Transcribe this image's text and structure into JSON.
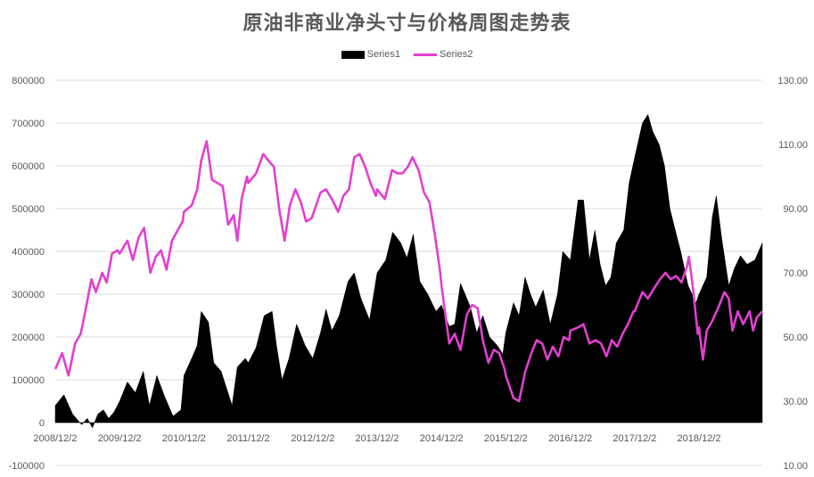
{
  "chart_data": {
    "type": "area+line",
    "title": "原油非商业净头寸与价格周图走势表",
    "legend": {
      "placement": "top-center"
    },
    "grid": true,
    "x_ticks": [
      "2008/12/2",
      "2009/12/2",
      "2010/12/2",
      "2011/12/2",
      "2012/12/2",
      "2013/12/2",
      "2014/12/2",
      "2015/12/2",
      "2016/12/2",
      "2017/12/2",
      "2018/12/2"
    ],
    "x_range": [
      "2008/12/2",
      "2019/11/26"
    ],
    "y_left": {
      "ylim": [
        -100000,
        800000
      ],
      "ticks": [
        "-100000",
        "0",
        "100000",
        "200000",
        "300000",
        "400000",
        "500000",
        "600000",
        "700000",
        "800000"
      ]
    },
    "y_right": {
      "ylim": [
        10,
        130
      ],
      "ticks": [
        "10.00",
        "30.00",
        "50.00",
        "70.00",
        "90.00",
        "110.00",
        "130.00"
      ]
    },
    "series": [
      {
        "name": "Series1",
        "type": "area",
        "axis": "left",
        "color": "#000000",
        "points": [
          [
            "2008/12/2",
            40000
          ],
          [
            "2009/1/20",
            65000
          ],
          [
            "2009/3/10",
            20000
          ],
          [
            "2009/5/1",
            -5000
          ],
          [
            "2009/6/1",
            10000
          ],
          [
            "2009/7/1",
            -12000
          ],
          [
            "2009/8/1",
            20000
          ],
          [
            "2009/9/1",
            30000
          ],
          [
            "2009/10/1",
            10000
          ],
          [
            "2009/11/1",
            25000
          ],
          [
            "2009/12/2",
            50000
          ],
          [
            "2010/1/15",
            95000
          ],
          [
            "2010/3/1",
            70000
          ],
          [
            "2010/4/15",
            120000
          ],
          [
            "2010/5/20",
            40000
          ],
          [
            "2010/7/1",
            110000
          ],
          [
            "2010/8/15",
            60000
          ],
          [
            "2010/10/1",
            15000
          ],
          [
            "2010/11/15",
            30000
          ],
          [
            "2010/12/2",
            110000
          ],
          [
            "2011/1/15",
            150000
          ],
          [
            "2011/2/15",
            180000
          ],
          [
            "2011/3/10",
            260000
          ],
          [
            "2011/4/20",
            235000
          ],
          [
            "2011/5/20",
            140000
          ],
          [
            "2011/7/1",
            120000
          ],
          [
            "2011/9/1",
            40000
          ],
          [
            "2011/10/1",
            130000
          ],
          [
            "2011/11/15",
            150000
          ],
          [
            "2011/12/2",
            140000
          ],
          [
            "2012/1/15",
            175000
          ],
          [
            "2012/3/1",
            250000
          ],
          [
            "2012/4/15",
            260000
          ],
          [
            "2012/5/10",
            180000
          ],
          [
            "2012/6/10",
            100000
          ],
          [
            "2012/7/20",
            150000
          ],
          [
            "2012/9/1",
            230000
          ],
          [
            "2012/10/20",
            180000
          ],
          [
            "2012/12/2",
            150000
          ],
          [
            "2013/1/15",
            210000
          ],
          [
            "2013/2/15",
            265000
          ],
          [
            "2013/3/20",
            215000
          ],
          [
            "2013/5/1",
            250000
          ],
          [
            "2013/6/20",
            330000
          ],
          [
            "2013/7/25",
            350000
          ],
          [
            "2013/9/1",
            290000
          ],
          [
            "2013/10/20",
            240000
          ],
          [
            "2013/12/2",
            350000
          ],
          [
            "2014/1/20",
            380000
          ],
          [
            "2014/2/28",
            445000
          ],
          [
            "2014/4/15",
            420000
          ],
          [
            "2014/5/20",
            385000
          ],
          [
            "2014/6/25",
            440000
          ],
          [
            "2014/8/1",
            330000
          ],
          [
            "2014/9/15",
            300000
          ],
          [
            "2014/11/1",
            260000
          ],
          [
            "2014/12/2",
            275000
          ],
          [
            "2015/1/15",
            225000
          ],
          [
            "2015/2/15",
            230000
          ],
          [
            "2015/3/20",
            325000
          ],
          [
            "2015/4/15",
            300000
          ],
          [
            "2015/5/15",
            270000
          ],
          [
            "2015/6/20",
            210000
          ],
          [
            "2015/7/25",
            250000
          ],
          [
            "2015/9/1",
            200000
          ],
          [
            "2015/10/15",
            180000
          ],
          [
            "2015/11/15",
            160000
          ],
          [
            "2015/12/2",
            210000
          ],
          [
            "2016/1/15",
            280000
          ],
          [
            "2016/2/15",
            250000
          ],
          [
            "2016/3/20",
            340000
          ],
          [
            "2016/4/20",
            300000
          ],
          [
            "2016/5/20",
            270000
          ],
          [
            "2016/7/1",
            310000
          ],
          [
            "2016/8/10",
            230000
          ],
          [
            "2016/9/20",
            300000
          ],
          [
            "2016/10/20",
            400000
          ],
          [
            "2016/12/2",
            380000
          ],
          [
            "2017/1/15",
            520000
          ],
          [
            "2017/2/15",
            520000
          ],
          [
            "2017/3/20",
            380000
          ],
          [
            "2017/4/20",
            450000
          ],
          [
            "2017/5/20",
            370000
          ],
          [
            "2017/6/20",
            320000
          ],
          [
            "2017/7/20",
            340000
          ],
          [
            "2017/8/20",
            420000
          ],
          [
            "2017/10/1",
            450000
          ],
          [
            "2017/11/1",
            560000
          ],
          [
            "2017/12/2",
            620000
          ],
          [
            "2018/1/15",
            700000
          ],
          [
            "2018/2/15",
            720000
          ],
          [
            "2018/3/15",
            680000
          ],
          [
            "2018/4/20",
            650000
          ],
          [
            "2018/5/20",
            600000
          ],
          [
            "2018/6/20",
            500000
          ],
          [
            "2018/7/20",
            450000
          ],
          [
            "2018/8/20",
            400000
          ],
          [
            "2018/10/1",
            320000
          ],
          [
            "2018/11/15",
            280000
          ],
          [
            "2018/12/2",
            300000
          ],
          [
            "2019/1/15",
            340000
          ],
          [
            "2019/2/15",
            480000
          ],
          [
            "2019/3/10",
            530000
          ],
          [
            "2019/4/10",
            430000
          ],
          [
            "2019/5/20",
            320000
          ],
          [
            "2019/6/20",
            360000
          ],
          [
            "2019/7/25",
            390000
          ],
          [
            "2019/9/1",
            370000
          ],
          [
            "2019/10/15",
            380000
          ],
          [
            "2019/11/26",
            420000
          ]
        ]
      },
      {
        "name": "Series2",
        "type": "line",
        "axis": "right",
        "color": "#e23fd1",
        "points": [
          [
            "2008/12/2",
            40
          ],
          [
            "2009/1/10",
            45
          ],
          [
            "2009/2/15",
            38
          ],
          [
            "2009/3/25",
            48
          ],
          [
            "2009/4/25",
            51
          ],
          [
            "2009/5/25",
            59
          ],
          [
            "2009/6/25",
            68
          ],
          [
            "2009/7/20",
            64
          ],
          [
            "2009/8/25",
            70
          ],
          [
            "2009/9/20",
            67
          ],
          [
            "2009/10/20",
            76
          ],
          [
            "2009/11/20",
            77
          ],
          [
            "2009/12/2",
            76
          ],
          [
            "2010/1/15",
            80
          ],
          [
            "2010/2/15",
            74
          ],
          [
            "2010/3/20",
            81
          ],
          [
            "2010/4/20",
            84
          ],
          [
            "2010/5/25",
            70
          ],
          [
            "2010/6/25",
            75
          ],
          [
            "2010/7/25",
            77
          ],
          [
            "2010/8/25",
            71
          ],
          [
            "2010/9/25",
            80
          ],
          [
            "2010/10/25",
            83
          ],
          [
            "2010/11/25",
            86
          ],
          [
            "2010/12/2",
            89
          ],
          [
            "2011/1/15",
            91
          ],
          [
            "2011/2/15",
            96
          ],
          [
            "2011/3/10",
            105
          ],
          [
            "2011/4/10",
            111
          ],
          [
            "2011/5/10",
            99
          ],
          [
            "2011/6/10",
            98
          ],
          [
            "2011/7/10",
            97
          ],
          [
            "2011/8/10",
            85
          ],
          [
            "2011/9/10",
            88
          ],
          [
            "2011/10/1",
            80
          ],
          [
            "2011/10/25",
            93
          ],
          [
            "2011/11/25",
            100
          ],
          [
            "2011/12/2",
            98
          ],
          [
            "2012/1/15",
            101
          ],
          [
            "2012/2/25",
            107
          ],
          [
            "2012/3/25",
            105
          ],
          [
            "2012/4/25",
            103
          ],
          [
            "2012/5/25",
            90
          ],
          [
            "2012/6/25",
            80
          ],
          [
            "2012/7/25",
            91
          ],
          [
            "2012/8/25",
            96
          ],
          [
            "2012/9/25",
            92
          ],
          [
            "2012/10/25",
            86
          ],
          [
            "2012/11/25",
            87
          ],
          [
            "2012/12/2",
            88
          ],
          [
            "2013/1/15",
            95
          ],
          [
            "2013/2/15",
            96
          ],
          [
            "2013/3/20",
            93
          ],
          [
            "2013/4/25",
            89
          ],
          [
            "2013/5/25",
            94
          ],
          [
            "2013/6/25",
            96
          ],
          [
            "2013/7/25",
            106
          ],
          [
            "2013/8/25",
            107
          ],
          [
            "2013/9/25",
            103
          ],
          [
            "2013/10/25",
            98
          ],
          [
            "2013/11/25",
            94
          ],
          [
            "2013/12/2",
            96
          ],
          [
            "2014/1/15",
            93
          ],
          [
            "2014/2/25",
            102
          ],
          [
            "2014/3/25",
            101
          ],
          [
            "2014/4/25",
            101
          ],
          [
            "2014/5/25",
            103
          ],
          [
            "2014/6/20",
            106
          ],
          [
            "2014/7/25",
            102
          ],
          [
            "2014/8/25",
            95
          ],
          [
            "2014/9/25",
            92
          ],
          [
            "2014/10/25",
            82
          ],
          [
            "2014/11/25",
            70
          ],
          [
            "2014/12/2",
            66
          ],
          [
            "2015/1/15",
            48
          ],
          [
            "2015/2/15",
            51
          ],
          [
            "2015/3/20",
            46
          ],
          [
            "2015/4/25",
            57
          ],
          [
            "2015/5/25",
            60
          ],
          [
            "2015/6/25",
            59
          ],
          [
            "2015/7/25",
            49
          ],
          [
            "2015/8/25",
            42
          ],
          [
            "2015/9/25",
            46
          ],
          [
            "2015/10/25",
            45
          ],
          [
            "2015/11/25",
            40
          ],
          [
            "2015/12/2",
            38
          ],
          [
            "2016/1/15",
            31
          ],
          [
            "2016/2/15",
            30
          ],
          [
            "2016/3/20",
            39
          ],
          [
            "2016/4/25",
            45
          ],
          [
            "2016/5/25",
            49
          ],
          [
            "2016/6/25",
            48
          ],
          [
            "2016/7/25",
            43
          ],
          [
            "2016/8/25",
            47
          ],
          [
            "2016/9/25",
            44
          ],
          [
            "2016/10/25",
            50
          ],
          [
            "2016/11/25",
            49
          ],
          [
            "2016/12/2",
            52
          ],
          [
            "2017/1/15",
            53
          ],
          [
            "2017/2/15",
            54
          ],
          [
            "2017/3/20",
            48
          ],
          [
            "2017/4/25",
            49
          ],
          [
            "2017/5/25",
            48
          ],
          [
            "2017/6/25",
            44
          ],
          [
            "2017/7/25",
            49
          ],
          [
            "2017/8/25",
            47
          ],
          [
            "2017/9/25",
            51
          ],
          [
            "2017/10/25",
            54
          ],
          [
            "2017/11/25",
            58
          ],
          [
            "2017/12/2",
            58
          ],
          [
            "2018/1/15",
            64
          ],
          [
            "2018/2/15",
            62
          ],
          [
            "2018/3/20",
            65
          ],
          [
            "2018/4/25",
            68
          ],
          [
            "2018/5/25",
            70
          ],
          [
            "2018/6/25",
            68
          ],
          [
            "2018/7/25",
            69
          ],
          [
            "2018/8/25",
            67
          ],
          [
            "2018/9/25",
            72
          ],
          [
            "2018/10/5",
            75
          ],
          [
            "2018/10/25",
            67
          ],
          [
            "2018/11/25",
            51
          ],
          [
            "2018/12/2",
            53
          ],
          [
            "2018/12/24",
            43
          ],
          [
            "2019/1/15",
            52
          ],
          [
            "2019/2/15",
            55
          ],
          [
            "2019/3/20",
            59
          ],
          [
            "2019/4/25",
            64
          ],
          [
            "2019/5/20",
            62
          ],
          [
            "2019/6/10",
            52
          ],
          [
            "2019/7/10",
            58
          ],
          [
            "2019/8/10",
            54
          ],
          [
            "2019/9/15",
            58
          ],
          [
            "2019/10/5",
            52
          ],
          [
            "2019/10/25",
            56
          ],
          [
            "2019/11/26",
            58
          ]
        ]
      }
    ]
  }
}
